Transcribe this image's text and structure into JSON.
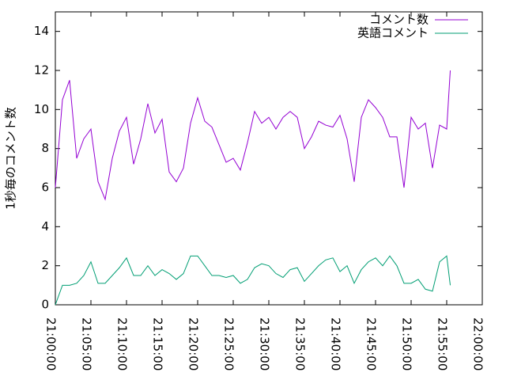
{
  "chart_data": {
    "type": "line",
    "ylabel": "1秒毎のコメント数",
    "x": [
      "21:00:00",
      "21:01:00",
      "21:02:00",
      "21:03:00",
      "21:04:00",
      "21:05:00",
      "21:06:00",
      "21:07:00",
      "21:08:00",
      "21:09:00",
      "21:10:00",
      "21:11:00",
      "21:12:00",
      "21:13:00",
      "21:14:00",
      "21:15:00",
      "21:16:00",
      "21:17:00",
      "21:18:00",
      "21:19:00",
      "21:20:00",
      "21:21:00",
      "21:22:00",
      "21:23:00",
      "21:24:00",
      "21:25:00",
      "21:26:00",
      "21:27:00",
      "21:28:00",
      "21:29:00",
      "21:30:00",
      "21:31:00",
      "21:32:00",
      "21:33:00",
      "21:34:00",
      "21:35:00",
      "21:36:00",
      "21:37:00",
      "21:38:00",
      "21:39:00",
      "21:40:00",
      "21:41:00",
      "21:42:00",
      "21:43:00",
      "21:44:00",
      "21:45:00",
      "21:46:00",
      "21:47:00",
      "21:48:00",
      "21:49:00",
      "21:50:00",
      "21:51:00",
      "21:52:00",
      "21:53:00",
      "21:54:00",
      "21:55:00",
      "21:55:30"
    ],
    "series": [
      {
        "name": "コメント数",
        "color": "#9400d3",
        "values": [
          6.0,
          10.5,
          11.5,
          7.5,
          8.5,
          9.0,
          6.3,
          5.4,
          7.5,
          8.9,
          9.6,
          7.2,
          8.5,
          10.3,
          8.8,
          9.5,
          6.8,
          6.3,
          7.0,
          9.3,
          10.6,
          9.4,
          9.1,
          8.2,
          7.3,
          7.5,
          6.9,
          8.3,
          9.9,
          9.3,
          9.6,
          9.0,
          9.6,
          9.9,
          9.6,
          8.0,
          8.6,
          9.4,
          9.2,
          9.1,
          9.7,
          8.5,
          6.3,
          9.6,
          10.5,
          10.1,
          9.6,
          8.6,
          8.6,
          6.0,
          9.6,
          9.0,
          9.3,
          7.0,
          9.2,
          9.0,
          12.0
        ]
      },
      {
        "name": "英語コメント",
        "color": "#009e73",
        "values": [
          0.0,
          1.0,
          1.0,
          1.1,
          1.5,
          2.2,
          1.1,
          1.1,
          1.5,
          1.9,
          2.4,
          1.5,
          1.5,
          2.0,
          1.5,
          1.8,
          1.6,
          1.3,
          1.6,
          2.5,
          2.5,
          2.0,
          1.5,
          1.5,
          1.4,
          1.5,
          1.1,
          1.3,
          1.9,
          2.1,
          2.0,
          1.6,
          1.4,
          1.8,
          1.9,
          1.2,
          1.6,
          2.0,
          2.3,
          2.4,
          1.7,
          2.0,
          1.1,
          1.8,
          2.2,
          2.4,
          2.0,
          2.5,
          2.0,
          1.1,
          1.1,
          1.3,
          0.8,
          0.7,
          2.2,
          2.5,
          1.0
        ]
      }
    ],
    "xlim": [
      "21:00:00",
      "22:00:00"
    ],
    "xticks": [
      "21:00:00",
      "21:05:00",
      "21:10:00",
      "21:15:00",
      "21:20:00",
      "21:25:00",
      "21:30:00",
      "21:35:00",
      "21:40:00",
      "21:45:00",
      "21:50:00",
      "21:55:00",
      "22:00:00"
    ],
    "ylim": [
      0,
      15
    ],
    "yticks": [
      0,
      2,
      4,
      6,
      8,
      10,
      12,
      14
    ],
    "legend": "top-right"
  }
}
